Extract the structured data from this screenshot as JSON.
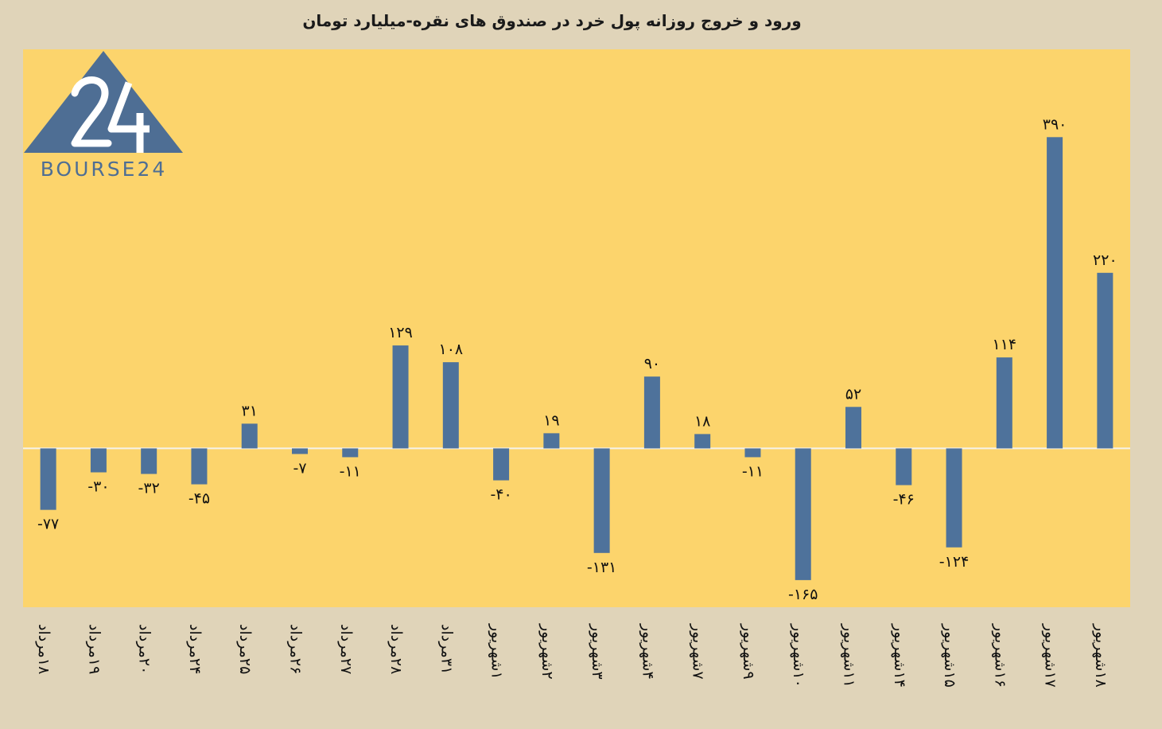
{
  "chart_data": {
    "type": "bar",
    "title": "ورود و خروج روزانه پول خرد در صندوق های نقره-میلیارد تومان",
    "categories": [
      "۱۸مرداد",
      "۱۹مرداد",
      "۲۰مرداد",
      "۲۴مرداد",
      "۲۵مرداد",
      "۲۶مرداد",
      "۲۷مرداد",
      "۲۸مرداد",
      "۳۱مرداد",
      "۱شهریور",
      "۲شهریور",
      "۳شهریور",
      "۴شهریور",
      "۷شهریور",
      "۹شهریور",
      "۱۰شهریور",
      "۱۱شهریور",
      "۱۴شهریور",
      "۱۵شهریور",
      "۱۶شهریور",
      "۱۷شهریور",
      "۱۸شهریور"
    ],
    "values": [
      -77,
      -30,
      -32,
      -45,
      31,
      -7,
      -11,
      129,
      108,
      -40,
      19,
      -131,
      90,
      18,
      -11,
      -165,
      52,
      -46,
      -124,
      114,
      390,
      220
    ],
    "value_labels": [
      "-۷۷",
      "-۳۰",
      "-۳۲",
      "-۴۵",
      "۳۱",
      "-۷",
      "-۱۱",
      "۱۲۹",
      "۱۰۸",
      "-۴۰",
      "۱۹",
      "-۱۳۱",
      "۹۰",
      "۱۸",
      "-۱۱",
      "-۱۶۵",
      "۵۲",
      "-۴۶",
      "-۱۲۴",
      "۱۱۴",
      "۳۹۰",
      "۲۲۰"
    ],
    "ylim": [
      -199,
      500
    ],
    "grid": false,
    "xlabel": "",
    "ylabel": ""
  },
  "colors": {
    "background": "#e0d4b9",
    "plot_area": "#fcd46c",
    "bar": "#4e729b",
    "zero_line": "#f5f2ea",
    "logo": "#4e6e94"
  },
  "logo": {
    "text": "BOURSE24",
    "mark": "24"
  }
}
